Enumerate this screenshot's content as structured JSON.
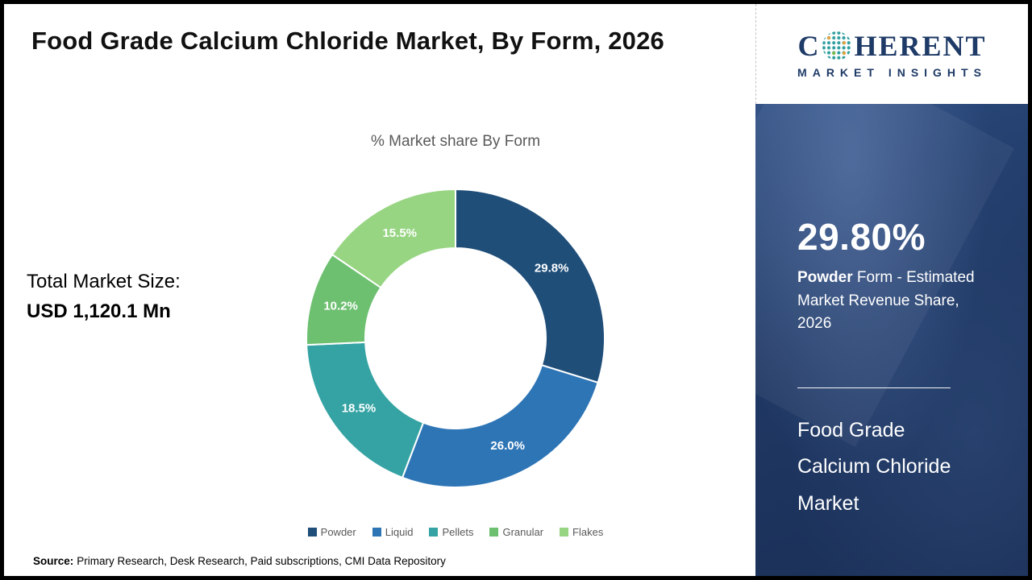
{
  "page": {
    "title": "Food Grade Calcium Chloride Market, By Form, 2026",
    "source_label": "Source:",
    "source_text": "Primary Research, Desk Research, Paid subscriptions, CMI Data Repository"
  },
  "total_market": {
    "label": "Total Market Size:",
    "value": "USD 1,120.1 Mn"
  },
  "chart_data": {
    "type": "pie",
    "donut": true,
    "title": "% Market share By Form",
    "categories": [
      "Powder",
      "Liquid",
      "Pellets",
      "Granular",
      "Flakes"
    ],
    "values": [
      29.8,
      26.0,
      18.5,
      10.2,
      15.5
    ],
    "labels": [
      "29.8%",
      "26.0%",
      "18.5%",
      "10.2%",
      "15.5%"
    ],
    "colors": [
      "#1f4e79",
      "#2e75b6",
      "#35a3a3",
      "#6ec071",
      "#97d583"
    ],
    "legend_position": "bottom",
    "start_angle_deg": 0,
    "direction": "clockwise"
  },
  "sidebar": {
    "logo": {
      "brand_prefix": "C",
      "brand_suffix": "HERENT",
      "tagline": "MARKET INSIGHTS"
    },
    "highlight_value": "29.80%",
    "highlight_bold": "Powder",
    "highlight_rest": " Form - Estimated Market Revenue Share, 2026",
    "market_name": "Food Grade Calcium Chloride Market"
  }
}
